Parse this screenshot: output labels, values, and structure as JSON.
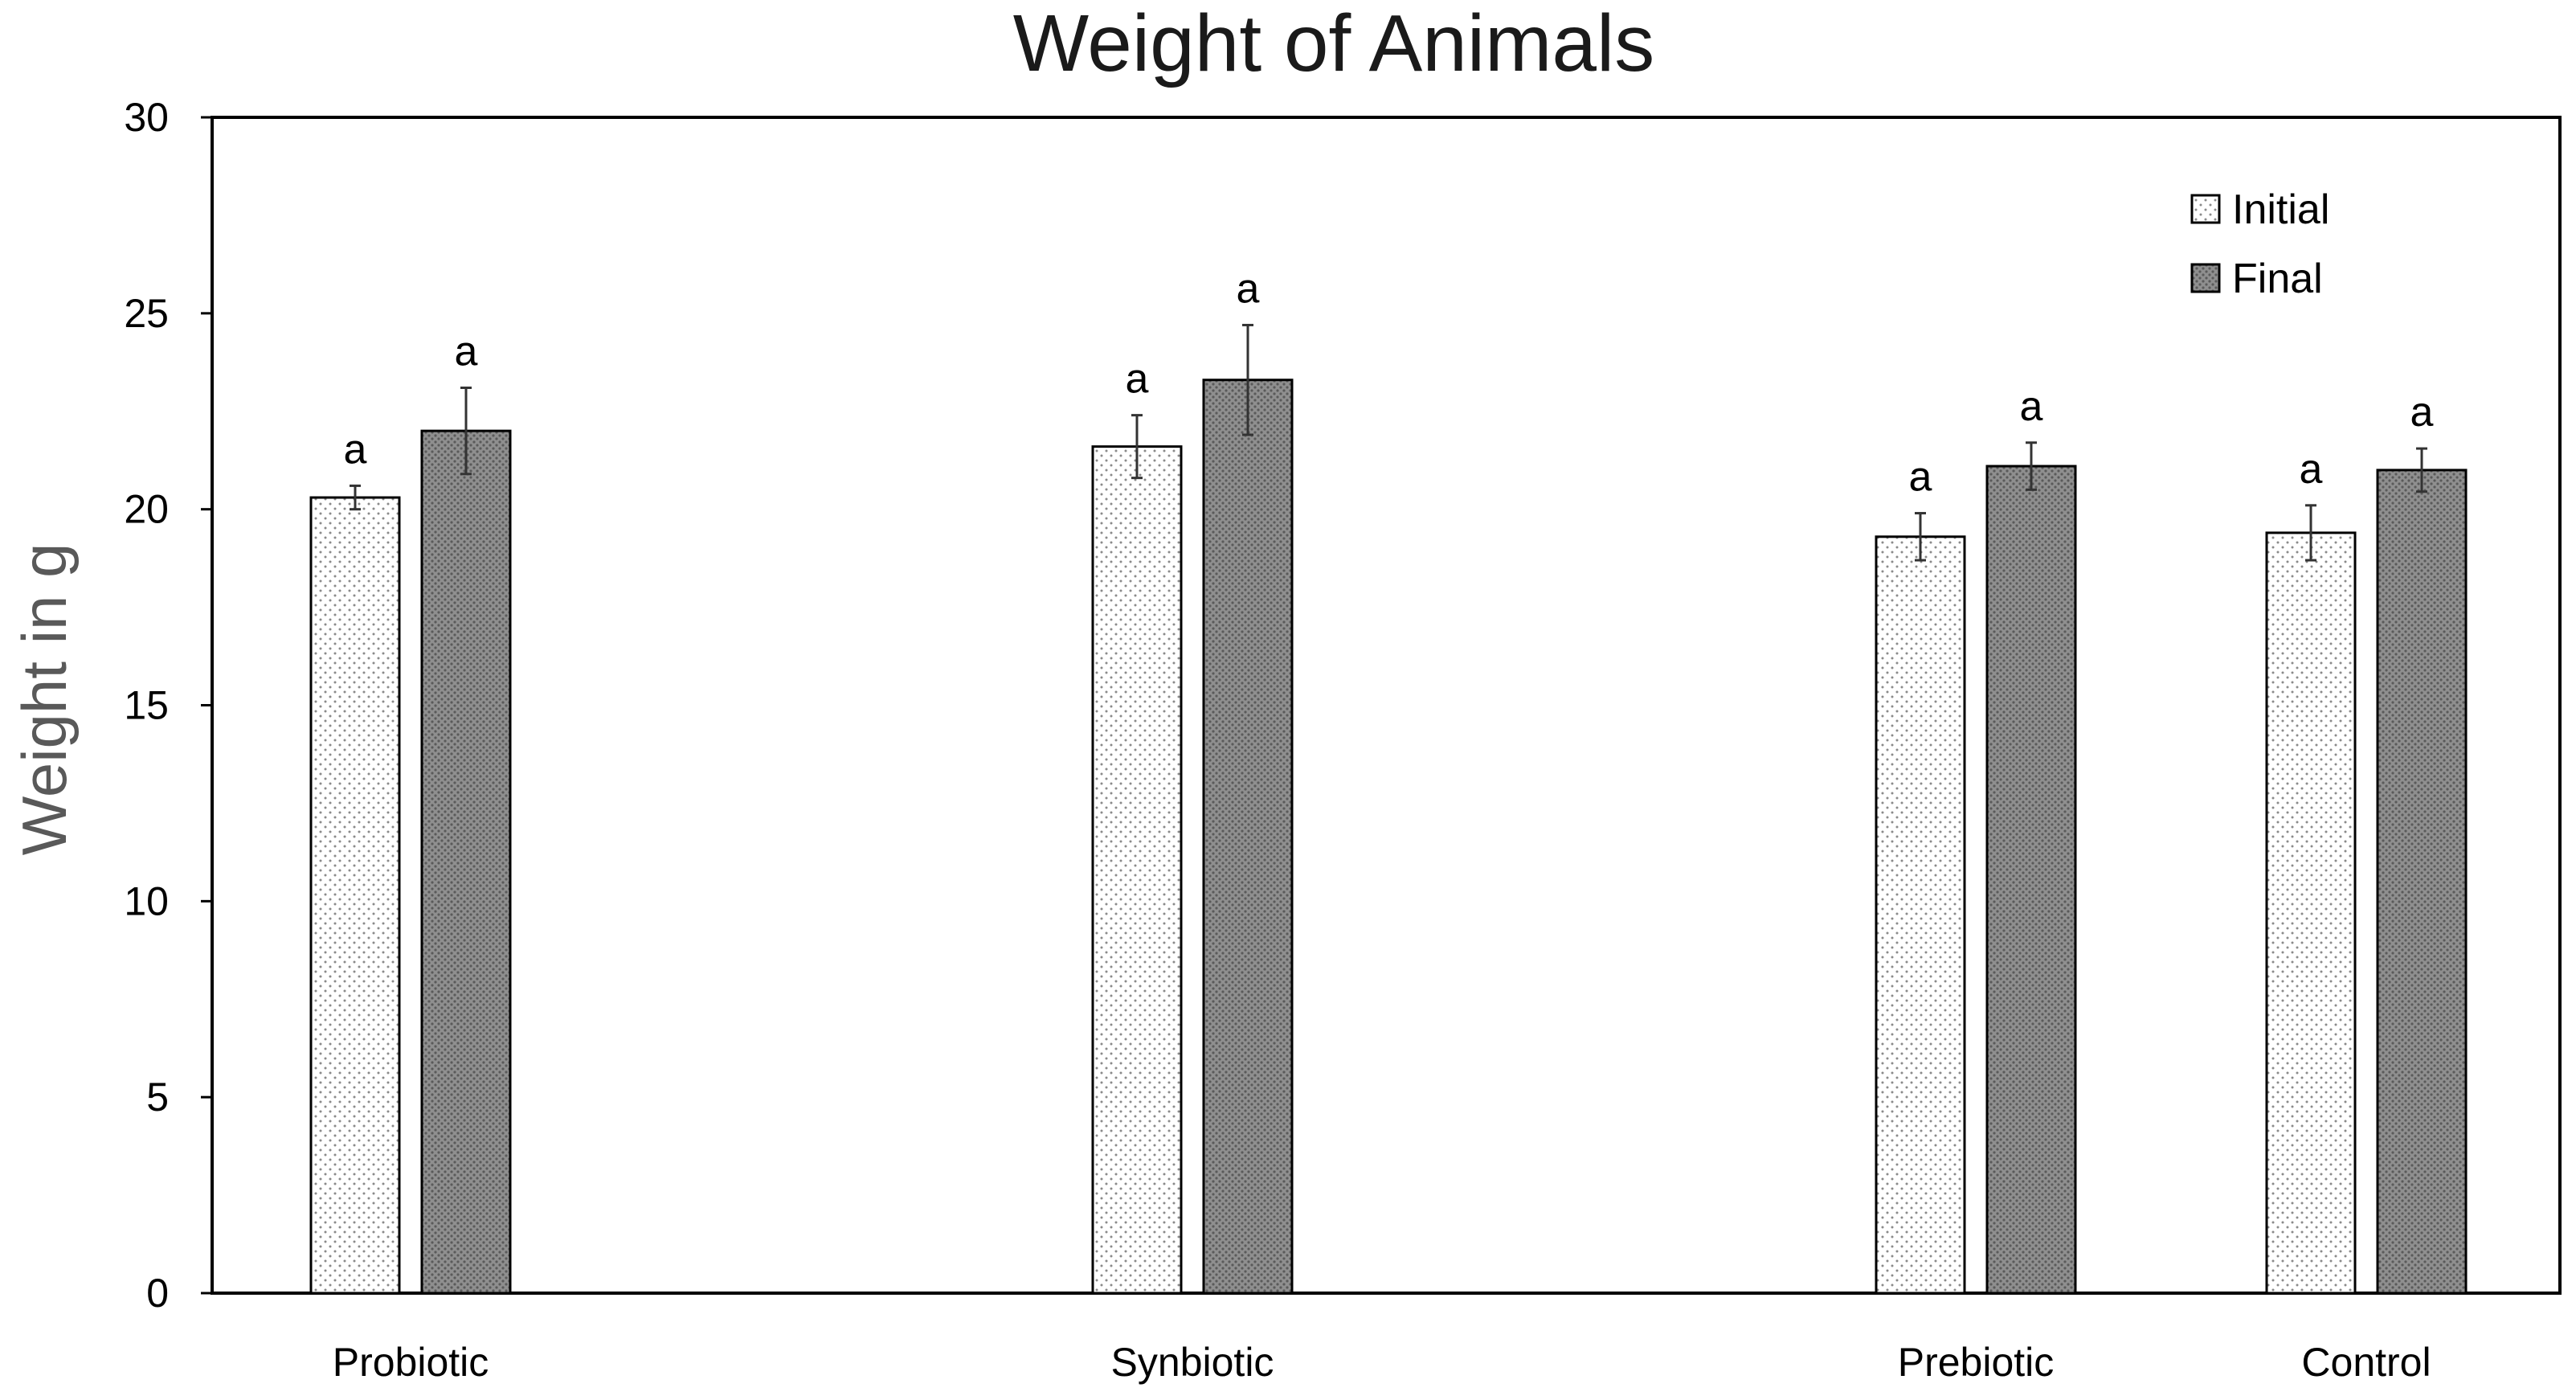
{
  "chart_data": {
    "type": "bar",
    "title": "Weight of Animals",
    "xlabel": "",
    "ylabel": "Weight in g",
    "ylim": [
      0,
      30
    ],
    "yticks": [
      "0",
      "5",
      "10",
      "15",
      "20",
      "25",
      "30"
    ],
    "grid": false,
    "legend_position": "top-right",
    "categories": [
      "Probiotic",
      "Synbiotic",
      "Prebiotic",
      "Control"
    ],
    "series": [
      {
        "name": "Initial",
        "pattern": "dotted",
        "fill": "#ffffff",
        "dot_color": "#8a8a8a",
        "values": [
          20.3,
          21.6,
          19.3,
          19.4
        ],
        "errors": [
          0.3,
          0.8,
          0.6,
          0.7
        ],
        "annotations": [
          "a",
          "a",
          "a",
          "a"
        ]
      },
      {
        "name": "Final",
        "pattern": "crosshatch",
        "fill": "#8f8f8f",
        "dot_color": "#5a5a5a",
        "values": [
          22.0,
          23.3,
          21.1,
          21.0
        ],
        "errors": [
          1.1,
          1.4,
          0.6,
          0.55
        ],
        "annotations": [
          "a",
          "a",
          "a",
          "a"
        ]
      }
    ]
  },
  "colors": {
    "axis": "#000000",
    "bar_outline": "#000000",
    "title_text": "#1a1a1a",
    "ylabel_text": "#595959",
    "tick_text": "#000000"
  }
}
